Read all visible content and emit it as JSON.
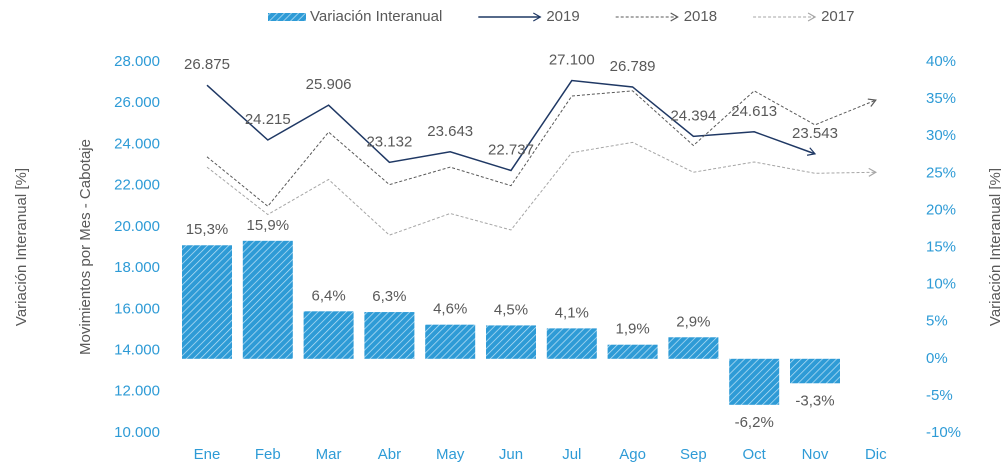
{
  "chart_data": {
    "type": "bar",
    "categories": [
      "Ene",
      "Feb",
      "Mar",
      "Abr",
      "May",
      "Jun",
      "Jul",
      "Ago",
      "Sep",
      "Oct",
      "Nov",
      "Dic"
    ],
    "series": [
      {
        "name": "Variación Interanual",
        "type": "bar",
        "axis": "y2",
        "color": "#2e9bd6",
        "values": [
          15.3,
          15.9,
          6.4,
          6.3,
          4.6,
          4.5,
          4.1,
          1.9,
          2.9,
          -6.2,
          -3.3,
          null
        ],
        "value_labels": [
          "15,3%",
          "15,9%",
          "6,4%",
          "6,3%",
          "4,6%",
          "4,5%",
          "4,1%",
          "1,9%",
          "2,9%",
          "-6,2%",
          "-3,3%",
          null
        ]
      },
      {
        "name": "2019",
        "type": "line",
        "color": "#1f3864",
        "style": "solid",
        "values": [
          26875,
          24215,
          25906,
          23132,
          23643,
          22737,
          27100,
          26789,
          24394,
          24613,
          23543,
          null
        ],
        "value_labels": [
          "26.875",
          "24.215",
          "25.906",
          "23.132",
          "23.643",
          "22.737",
          "27.100",
          "26.789",
          "24.394",
          "24.613",
          "23.543",
          null
        ]
      },
      {
        "name": "2018",
        "type": "line",
        "color": "#595959",
        "style": "dashed",
        "values": [
          23400,
          21000,
          24600,
          22050,
          22900,
          22000,
          26350,
          26600,
          23950,
          26600,
          24950,
          26150
        ]
      },
      {
        "name": "2017",
        "type": "line",
        "color": "#a6a6a6",
        "style": "dashed",
        "values": [
          22900,
          20600,
          22300,
          19600,
          20650,
          19850,
          23600,
          24100,
          22650,
          23150,
          22600,
          22650
        ]
      }
    ],
    "ylabel": "Movimientos por Mes - Cabotaje",
    "ylabel_outer": "Variación Interanual [%]",
    "y2label": "Variación Interanual [%]",
    "ylim": [
      10000,
      28000
    ],
    "yticks": [
      {
        "value": 10000,
        "label": "10.000"
      },
      {
        "value": 12000,
        "label": "12.000"
      },
      {
        "value": 14000,
        "label": "14.000"
      },
      {
        "value": 16000,
        "label": "16.000"
      },
      {
        "value": 18000,
        "label": "18.000"
      },
      {
        "value": 20000,
        "label": "20.000"
      },
      {
        "value": 22000,
        "label": "22.000"
      },
      {
        "value": 24000,
        "label": "24.000"
      },
      {
        "value": 26000,
        "label": "26.000"
      },
      {
        "value": 28000,
        "label": "28.000"
      }
    ],
    "y2lim": [
      -10,
      40
    ],
    "y2ticks": [
      {
        "value": -10,
        "label": "-10%"
      },
      {
        "value": -5,
        "label": "-5%"
      },
      {
        "value": 0,
        "label": "0%"
      },
      {
        "value": 5,
        "label": "5%"
      },
      {
        "value": 10,
        "label": "10%"
      },
      {
        "value": 15,
        "label": "15%"
      },
      {
        "value": 20,
        "label": "20%"
      },
      {
        "value": 25,
        "label": "25%"
      },
      {
        "value": 30,
        "label": "30%"
      },
      {
        "value": 35,
        "label": "35%"
      },
      {
        "value": 40,
        "label": "40%"
      }
    ],
    "legend": "top"
  }
}
